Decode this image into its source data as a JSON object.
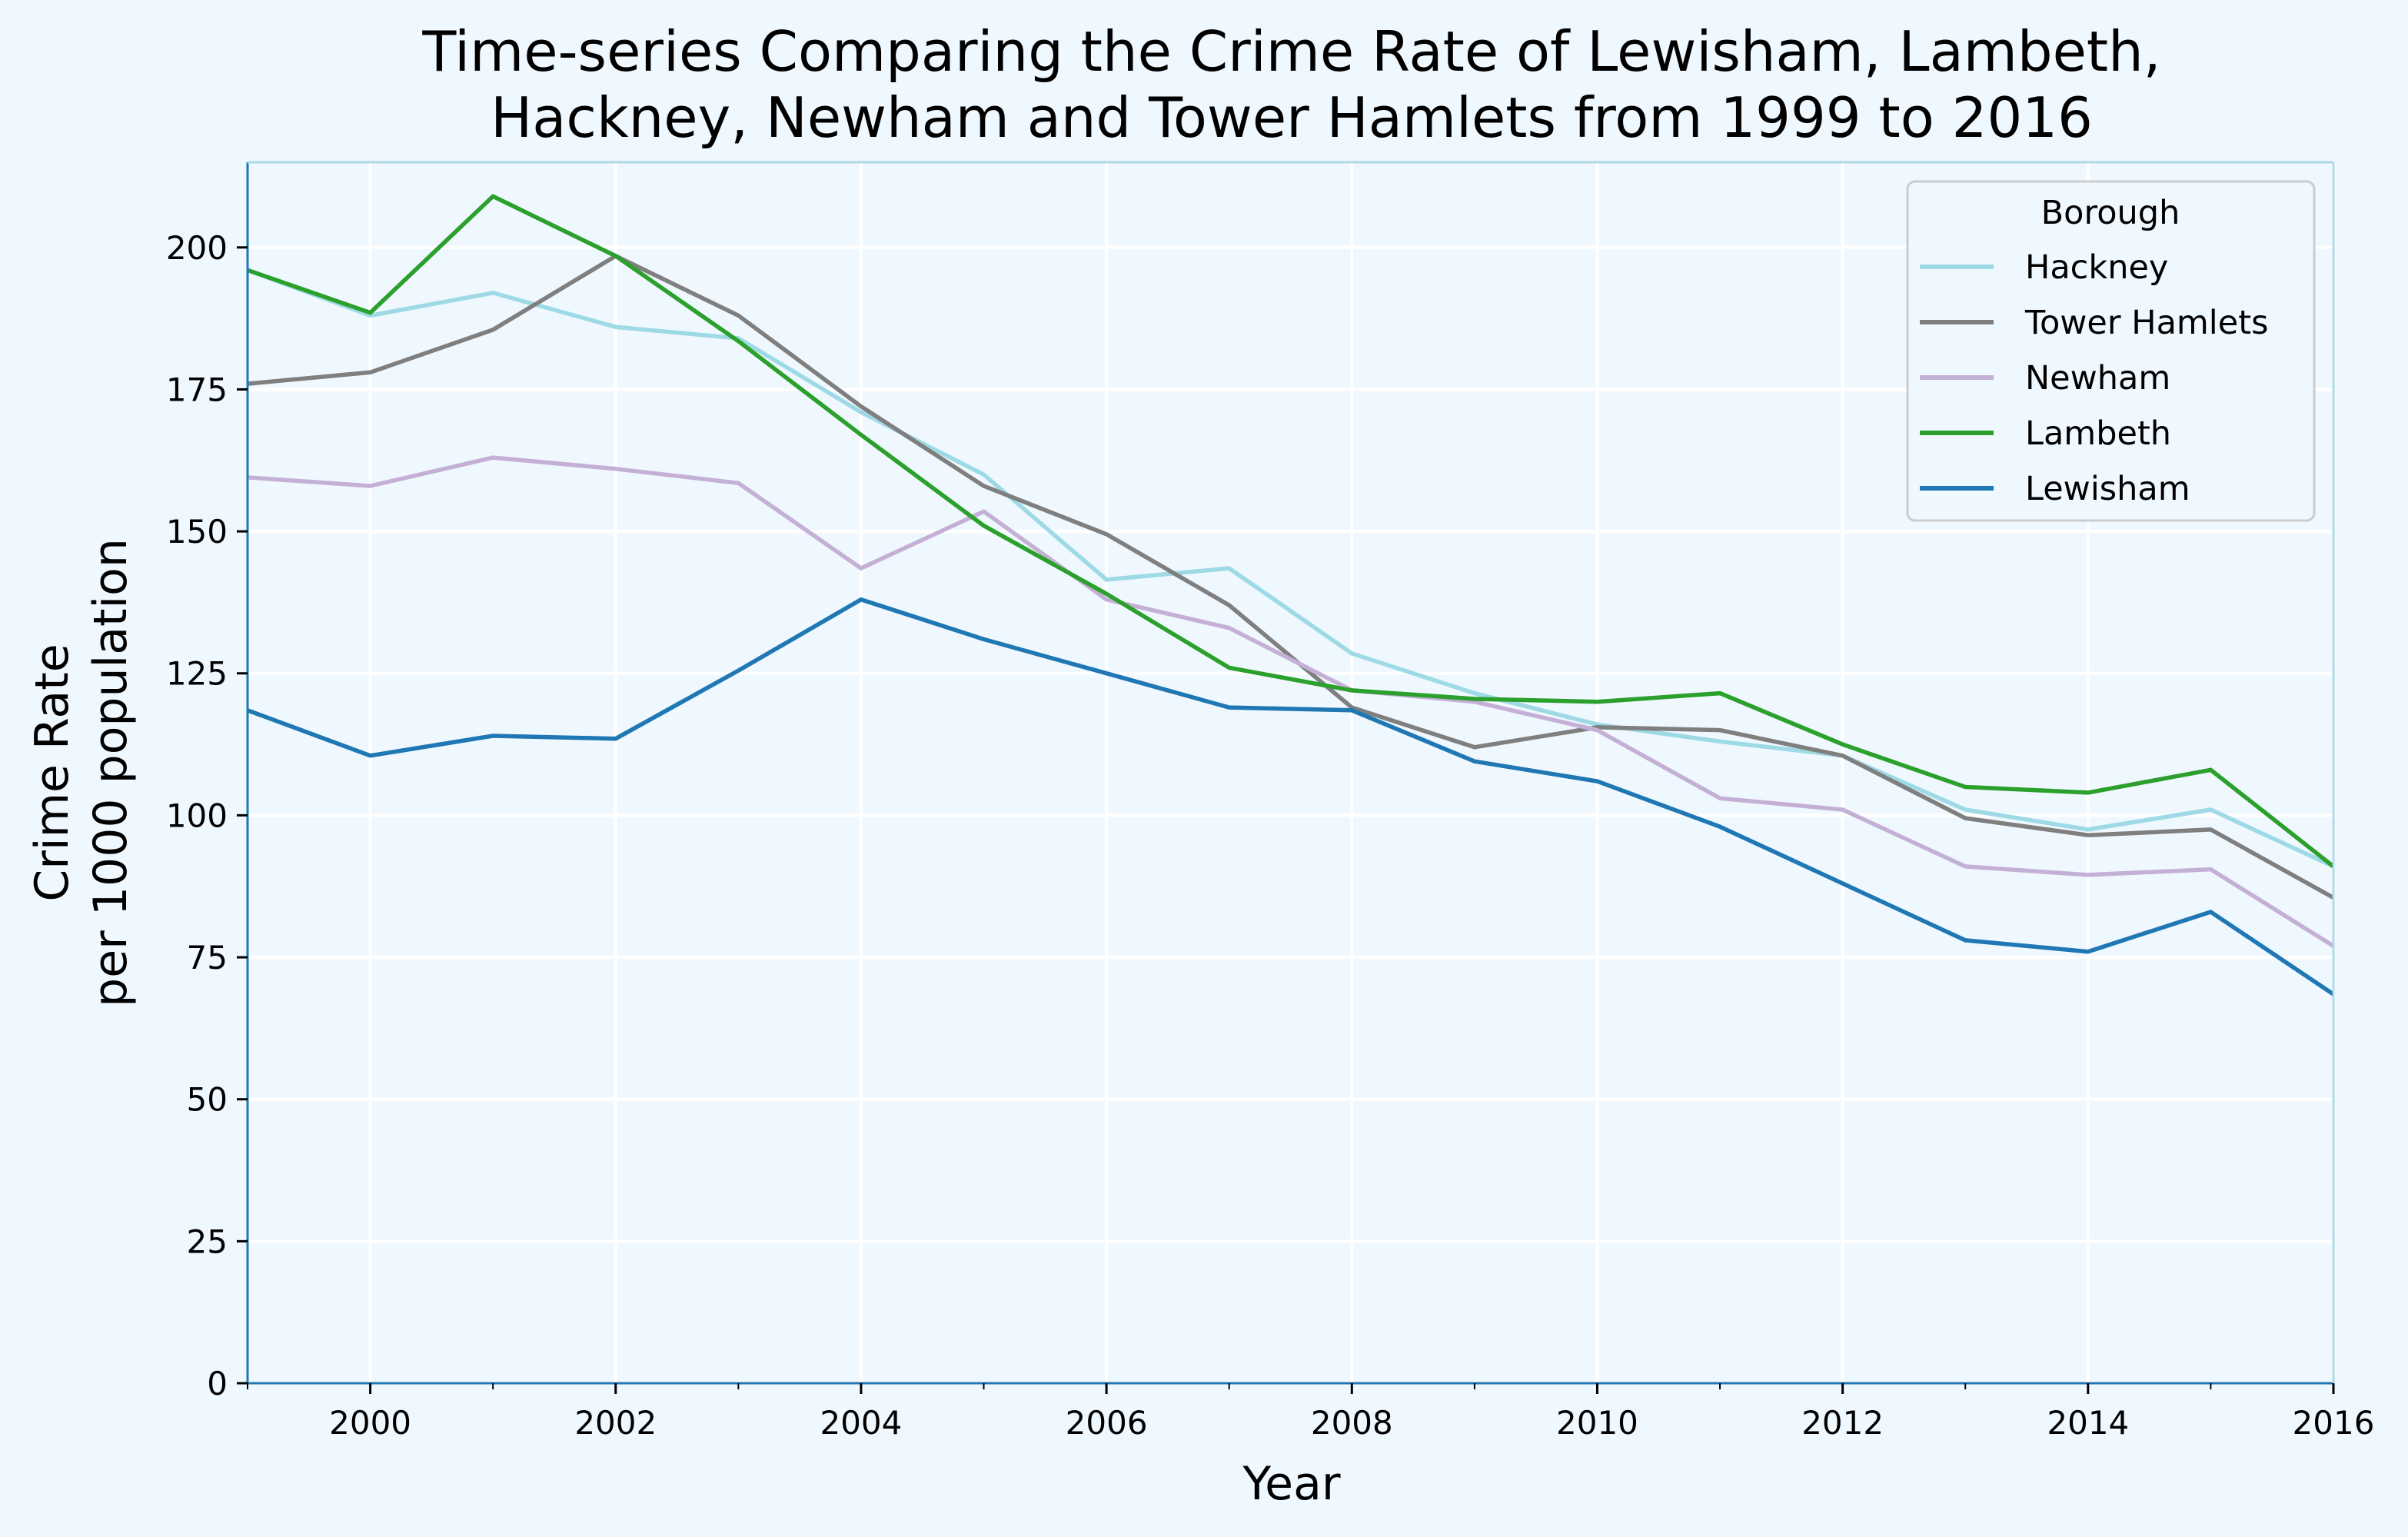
{
  "chart_data": {
    "type": "line",
    "title_lines": [
      "Time-series Comparing the Crime Rate of Lewisham, Lambeth,",
      "Hackney, Newham and Tower Hamlets from 1999 to 2016"
    ],
    "xlabel": "Year",
    "ylabel_lines": [
      "Crime Rate",
      "per 1000 population"
    ],
    "xlim": [
      1999,
      2016
    ],
    "ylim": [
      0,
      215
    ],
    "x_ticks": [
      2000,
      2002,
      2004,
      2006,
      2008,
      2010,
      2012,
      2014,
      2016
    ],
    "x_minor_ticks": [
      1999,
      2001,
      2003,
      2005,
      2007,
      2009,
      2011,
      2013,
      2015
    ],
    "y_ticks": [
      0,
      25,
      50,
      75,
      100,
      125,
      150,
      175,
      200
    ],
    "grid": true,
    "legend": {
      "title": "Borough",
      "placement": "top-right"
    },
    "x": [
      1999,
      2000,
      2001,
      2002,
      2003,
      2004,
      2005,
      2006,
      2007,
      2008,
      2009,
      2010,
      2011,
      2012,
      2013,
      2014,
      2015,
      2016
    ],
    "series": [
      {
        "name": "Hackney",
        "color": "#9edae5",
        "values": [
          196,
          188,
          192,
          186,
          184,
          171,
          160,
          141.5,
          143.5,
          128.5,
          121.5,
          116,
          113,
          110.5,
          101,
          97.5,
          101,
          91
        ]
      },
      {
        "name": "Tower Hamlets",
        "color": "#7f7f7f",
        "values": [
          176,
          178,
          185.5,
          198.5,
          188,
          172,
          158,
          149.5,
          137,
          119,
          112,
          115.5,
          115,
          110.5,
          99.5,
          96.5,
          97.5,
          85.5
        ]
      },
      {
        "name": "Newham",
        "color": "#c5b0d5",
        "values": [
          159.5,
          158,
          163,
          161,
          158.5,
          143.5,
          153.5,
          138,
          133,
          122,
          120,
          115,
          103,
          101,
          91,
          89.5,
          90.5,
          77
        ]
      },
      {
        "name": "Lambeth",
        "color": "#2ca02c",
        "values": [
          196,
          188.5,
          209,
          198.5,
          183.5,
          167,
          151,
          139,
          126,
          122,
          120.5,
          120,
          121.5,
          112.5,
          105,
          104,
          108,
          91
        ]
      },
      {
        "name": "Lewisham",
        "color": "#1f77b4",
        "values": [
          118.5,
          110.5,
          114,
          113.5,
          125.5,
          138,
          131,
          125,
          119,
          118.5,
          109.5,
          106,
          98,
          88,
          78,
          76,
          83,
          68.5
        ]
      }
    ]
  }
}
